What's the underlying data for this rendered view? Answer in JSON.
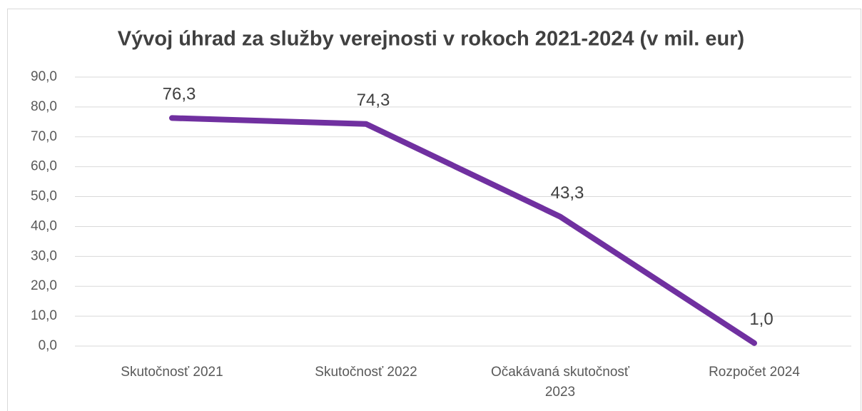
{
  "chart_data": {
    "type": "line",
    "title": "Vývoj úhrad za služby verejnosti v rokoch 2021-2024 (v mil. eur)",
    "categories": [
      "Skutočnosť 2021",
      "Skutočnosť 2022",
      "Očakávaná skutočnosť 2023",
      "Rozpočet 2024"
    ],
    "values": [
      76.3,
      74.3,
      43.3,
      1.0
    ],
    "value_labels": [
      "76,3",
      "74,3",
      "43,3",
      "1,0"
    ],
    "color": "#7030a0",
    "ylim": [
      0,
      90
    ],
    "yticks": [
      {
        "value": 0,
        "label": "0,0"
      },
      {
        "value": 10,
        "label": "10,0"
      },
      {
        "value": 20,
        "label": "20,0"
      },
      {
        "value": 30,
        "label": "30,0"
      },
      {
        "value": 40,
        "label": "40,0"
      },
      {
        "value": 50,
        "label": "50,0"
      },
      {
        "value": 60,
        "label": "60,0"
      },
      {
        "value": 70,
        "label": "70,0"
      },
      {
        "value": 80,
        "label": "80,0"
      },
      {
        "value": 90,
        "label": "90,0"
      }
    ],
    "grid": true
  }
}
